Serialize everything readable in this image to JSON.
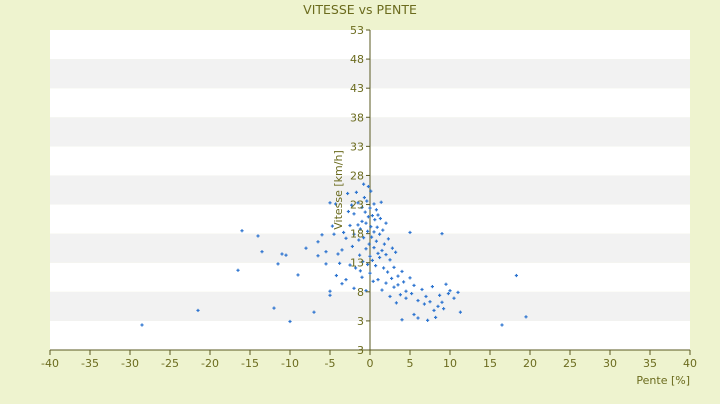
{
  "chart_data": {
    "type": "scatter",
    "title": "VITESSE vs PENTE",
    "xlabel": "Pente [%]",
    "ylabel": "Vitesse [km/h]",
    "xlim": [
      -40,
      40
    ],
    "ylim": [
      -2,
      53
    ],
    "x_ticks": [
      -40,
      -35,
      -30,
      -25,
      -20,
      -15,
      -10,
      -5,
      0,
      5,
      10,
      15,
      20,
      25,
      30,
      35,
      40
    ],
    "y_ticks": [
      3,
      8,
      13,
      18,
      23,
      28,
      33,
      38,
      43,
      48,
      53
    ],
    "bottom_y_label": "3",
    "grid": true,
    "legend": "none",
    "colors": {
      "background": "#eef3cf",
      "plot_band_light": "#ffffff",
      "plot_band_dark": "#f2f2f2",
      "axis": "#5a5a22",
      "text": "#6b6b1e",
      "marker": "#2e75d0"
    },
    "points": [
      [
        -28.5,
        2.3
      ],
      [
        -21.5,
        4.8
      ],
      [
        -16.5,
        11.7
      ],
      [
        -16,
        18.5
      ],
      [
        -14,
        17.6
      ],
      [
        -13.5,
        14.9
      ],
      [
        -12,
        5.2
      ],
      [
        -11.5,
        12.8
      ],
      [
        -11,
        14.5
      ],
      [
        -10.5,
        14.3
      ],
      [
        -10,
        2.9
      ],
      [
        -9,
        10.9
      ],
      [
        -8,
        15.5
      ],
      [
        -7,
        4.5
      ],
      [
        -6.5,
        14.2
      ],
      [
        -6.5,
        16.6
      ],
      [
        -6,
        17.8
      ],
      [
        -5.5,
        12.8
      ],
      [
        -5.5,
        14.9
      ],
      [
        -5,
        23.3
      ],
      [
        -5,
        8.1
      ],
      [
        -5,
        7.4
      ],
      [
        -4.7,
        19.3
      ],
      [
        -4.5,
        17.9
      ],
      [
        -4.3,
        23.1
      ],
      [
        -4.2,
        10.8
      ],
      [
        -4,
        14.5
      ],
      [
        -3.8,
        12.9
      ],
      [
        -3.5,
        15.2
      ],
      [
        -3.5,
        9.4
      ],
      [
        -3.3,
        18.2
      ],
      [
        -3,
        10.1
      ],
      [
        -3,
        17.2
      ],
      [
        -2.8,
        24.9
      ],
      [
        -2.7,
        21.8
      ],
      [
        -2.5,
        12.6
      ],
      [
        -2.5,
        19.4
      ],
      [
        -2.3,
        22.9
      ],
      [
        -2.2,
        15.8
      ],
      [
        -2,
        8.6
      ],
      [
        -2,
        17.9
      ],
      [
        -2,
        21.4
      ],
      [
        -1.8,
        12.1
      ],
      [
        -1.7,
        25.1
      ],
      [
        -1.5,
        23.3
      ],
      [
        -1.5,
        19.5
      ],
      [
        -1.4,
        16.9
      ],
      [
        -1.3,
        14.3
      ],
      [
        -1.2,
        11.6
      ],
      [
        -1.2,
        18.8
      ],
      [
        -1,
        22.5
      ],
      [
        -1,
        20.1
      ],
      [
        -1,
        10.5
      ],
      [
        -0.9,
        13.2
      ],
      [
        -0.8,
        26.5
      ],
      [
        -0.8,
        17.3
      ],
      [
        -0.7,
        24.2
      ],
      [
        -0.6,
        21.7
      ],
      [
        -0.5,
        15.4
      ],
      [
        -0.5,
        19.8
      ],
      [
        -0.5,
        8.2
      ],
      [
        -0.4,
        23.6
      ],
      [
        -0.3,
        18.4
      ],
      [
        -0.3,
        12.7
      ],
      [
        -0.2,
        26.1
      ],
      [
        -0.2,
        20.9
      ],
      [
        -0.1,
        16.2
      ],
      [
        0,
        22.4
      ],
      [
        0,
        14.1
      ],
      [
        0,
        11.2
      ],
      [
        0.1,
        19.2
      ],
      [
        0.1,
        25.3
      ],
      [
        0.2,
        17.4
      ],
      [
        0.3,
        21.1
      ],
      [
        0.3,
        13.4
      ],
      [
        0.4,
        9.8
      ],
      [
        0.5,
        23.1
      ],
      [
        0.5,
        18.3
      ],
      [
        0.5,
        15.6
      ],
      [
        0.6,
        20.4
      ],
      [
        0.7,
        12.5
      ],
      [
        0.8,
        22.1
      ],
      [
        0.8,
        16.7
      ],
      [
        0.9,
        19.1
      ],
      [
        1,
        14.6
      ],
      [
        1,
        21.2
      ],
      [
        1,
        10.1
      ],
      [
        1.2,
        17.9
      ],
      [
        1.2,
        13.9
      ],
      [
        1.3,
        20.6
      ],
      [
        1.4,
        23.4
      ],
      [
        1.5,
        15.1
      ],
      [
        1.5,
        8.3
      ],
      [
        1.6,
        18.6
      ],
      [
        1.7,
        12.1
      ],
      [
        1.8,
        16.2
      ],
      [
        2,
        14.4
      ],
      [
        2,
        19.8
      ],
      [
        2,
        9.5
      ],
      [
        2.2,
        11.4
      ],
      [
        2.3,
        17.1
      ],
      [
        2.5,
        13.5
      ],
      [
        2.5,
        7.2
      ],
      [
        2.7,
        10.3
      ],
      [
        2.8,
        15.5
      ],
      [
        3,
        12.2
      ],
      [
        3,
        8.8
      ],
      [
        3.2,
        14.8
      ],
      [
        3.3,
        6.1
      ],
      [
        3.5,
        10.7
      ],
      [
        3.5,
        9.2
      ],
      [
        3.8,
        7.5
      ],
      [
        4,
        11.5
      ],
      [
        4,
        3.2
      ],
      [
        4.2,
        9.7
      ],
      [
        4.5,
        8.1
      ],
      [
        4.5,
        6.9
      ],
      [
        5,
        18.2
      ],
      [
        5,
        10.4
      ],
      [
        5.2,
        7.7
      ],
      [
        5.5,
        4.1
      ],
      [
        5.5,
        9.1
      ],
      [
        6,
        6.5
      ],
      [
        6,
        3.5
      ],
      [
        6.5,
        8.4
      ],
      [
        6.8,
        5.9
      ],
      [
        7,
        7.2
      ],
      [
        7.2,
        3.1
      ],
      [
        7.5,
        6.3
      ],
      [
        7.8,
        8.9
      ],
      [
        8,
        4.8
      ],
      [
        8.2,
        3.6
      ],
      [
        8.5,
        5.5
      ],
      [
        8.7,
        7.4
      ],
      [
        9,
        18
      ],
      [
        9,
        6.2
      ],
      [
        9.2,
        5.1
      ],
      [
        9.5,
        9.3
      ],
      [
        9.8,
        7.7
      ],
      [
        10,
        8.2
      ],
      [
        10.5,
        6.9
      ],
      [
        11,
        7.9
      ],
      [
        11.3,
        4.5
      ],
      [
        16.5,
        2.3
      ],
      [
        18.3,
        10.8
      ],
      [
        19.5,
        3.7
      ]
    ]
  }
}
